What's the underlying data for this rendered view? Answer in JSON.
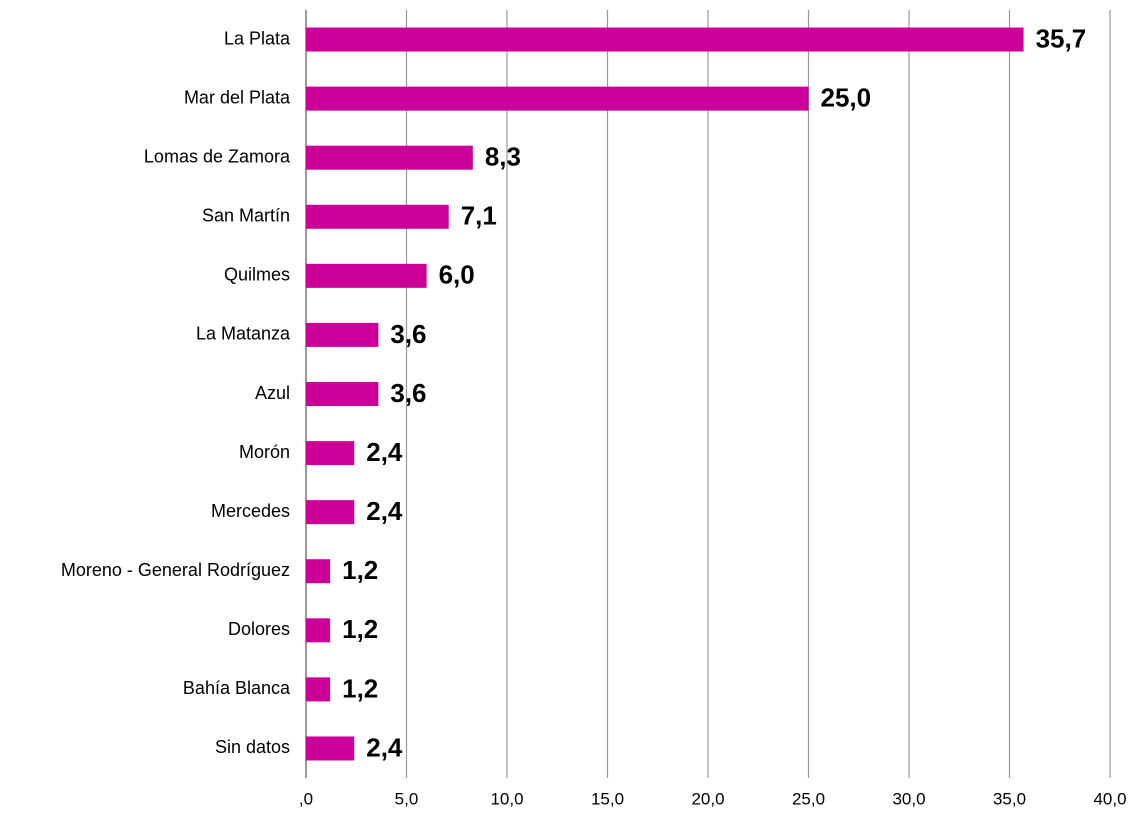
{
  "chart_data": {
    "type": "bar",
    "orientation": "horizontal",
    "categories": [
      "La Plata",
      "Mar del Plata",
      "Lomas de Zamora",
      "San Martín",
      "Quilmes",
      "La Matanza",
      "Azul",
      "Morón",
      "Mercedes",
      "Moreno - General Rodríguez",
      "Dolores",
      "Bahía Blanca",
      "Sin datos"
    ],
    "values": [
      35.7,
      25.0,
      8.3,
      7.1,
      6.0,
      3.6,
      3.6,
      2.4,
      2.4,
      1.2,
      1.2,
      1.2,
      2.4
    ],
    "value_labels": [
      "35,7",
      "25,0",
      "8,3",
      "7,1",
      "6,0",
      "3,6",
      "3,6",
      "2,4",
      "2,4",
      "1,2",
      "1,2",
      "1,2",
      "2,4"
    ],
    "color": "#cc0099",
    "xlim": [
      0,
      40
    ],
    "xticks": [
      {
        "value": 0,
        "label": ",0"
      },
      {
        "value": 5,
        "label": "5,0"
      },
      {
        "value": 10,
        "label": "10,0"
      },
      {
        "value": 15,
        "label": "15,0"
      },
      {
        "value": 20,
        "label": "20,0"
      },
      {
        "value": 25,
        "label": "25,0"
      },
      {
        "value": 30,
        "label": "30,0"
      },
      {
        "value": 35,
        "label": "35,0"
      },
      {
        "value": 40,
        "label": "40,0"
      }
    ],
    "grid": true
  }
}
